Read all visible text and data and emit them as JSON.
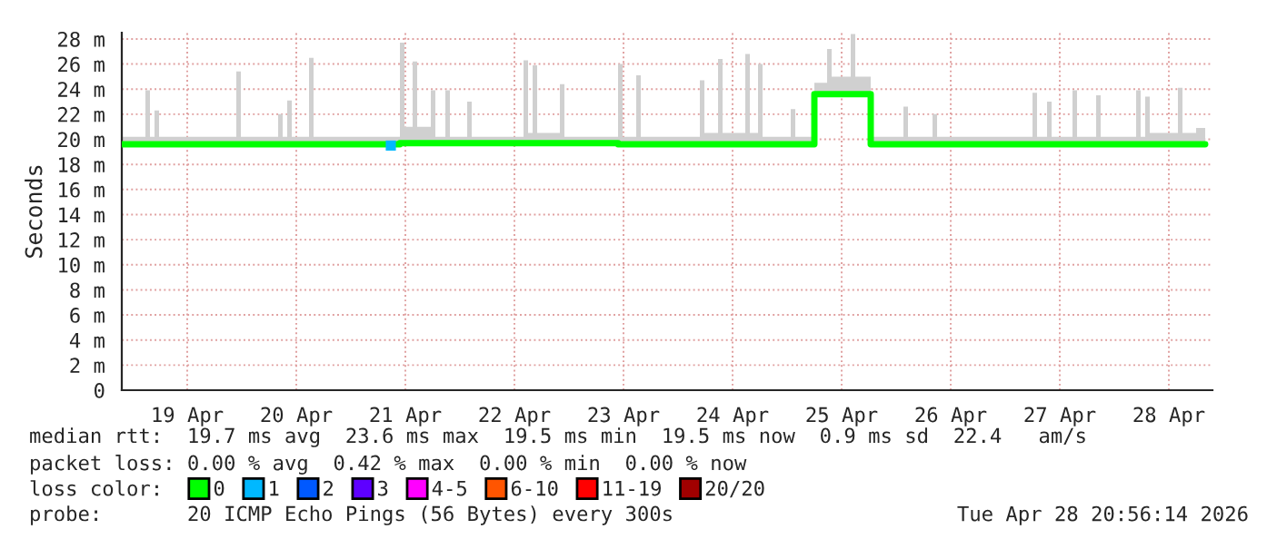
{
  "chart_data": {
    "type": "step",
    "ylabel": "Seconds",
    "x": [
      "2026-04-18T21:36",
      "2026-04-19T02:48",
      "2026-04-19T03:48",
      "2026-04-19T04:48",
      "2026-04-19T05:48",
      "2026-04-19T22:48",
      "2026-04-19T23:48",
      "2026-04-20T08:00",
      "2026-04-20T09:00",
      "2026-04-20T10:00",
      "2026-04-20T11:00",
      "2026-04-20T14:48",
      "2026-04-20T15:48",
      "2026-04-21T10:48",
      "2026-04-21T11:48",
      "2026-04-21T13:36",
      "2026-04-21T14:36",
      "2026-04-21T17:36",
      "2026-04-21T18:36",
      "2026-04-21T20:48",
      "2026-04-21T21:48",
      "2026-04-22T01:36",
      "2026-04-22T02:36",
      "2026-04-22T14:00",
      "2026-04-22T15:00",
      "2026-04-22T16:00",
      "2026-04-22T17:00",
      "2026-04-22T22:00",
      "2026-04-22T23:00",
      "2026-04-23T10:48",
      "2026-04-23T11:48",
      "2026-04-23T14:48",
      "2026-04-23T15:48",
      "2026-04-24T04:48",
      "2026-04-24T05:48",
      "2026-04-24T08:48",
      "2026-04-24T09:48",
      "2026-04-24T14:48",
      "2026-04-24T15:48",
      "2026-04-24T17:36",
      "2026-04-24T18:36",
      "2026-04-25T00:48",
      "2026-04-25T01:48",
      "2026-04-25T06:00",
      "2026-04-25T08:48",
      "2026-04-25T09:48",
      "2026-04-25T14:00",
      "2026-04-25T15:00",
      "2026-04-25T18:24",
      "2026-04-26T01:36",
      "2026-04-26T02:36",
      "2026-04-26T08:00",
      "2026-04-26T09:00",
      "2026-04-27T06:00",
      "2026-04-27T07:00",
      "2026-04-27T09:12",
      "2026-04-27T10:12",
      "2026-04-27T14:48",
      "2026-04-27T15:48",
      "2026-04-27T20:00",
      "2026-04-27T21:00",
      "2026-04-28T04:48",
      "2026-04-28T05:48",
      "2026-04-28T06:48",
      "2026-04-28T07:48",
      "2026-04-28T14:00",
      "2026-04-28T15:00",
      "2026-04-28T18:00",
      "2026-04-28T20:00"
    ],
    "series": [
      {
        "name": "0",
        "color": "#00ff00",
        "values": [
          19.6,
          19.6,
          19.6,
          19.6,
          19.6,
          19.6,
          19.6,
          19.6,
          19.6,
          19.6,
          19.6,
          19.6,
          19.6,
          19.7,
          19.7,
          19.7,
          19.7,
          19.7,
          19.7,
          19.7,
          19.7,
          19.7,
          19.7,
          19.7,
          19.7,
          19.7,
          19.7,
          19.7,
          19.7,
          19.6,
          19.6,
          19.6,
          19.6,
          19.6,
          19.6,
          19.6,
          19.6,
          19.6,
          19.6,
          19.6,
          19.6,
          19.6,
          19.6,
          23.6,
          23.6,
          23.6,
          23.6,
          23.6,
          19.6,
          19.6,
          19.6,
          19.6,
          19.6,
          19.6,
          19.6,
          19.6,
          19.6,
          19.6,
          19.6,
          19.6,
          19.6,
          19.6,
          19.6,
          19.6,
          19.6,
          19.6,
          19.6,
          19.6,
          19.6
        ],
        "lower": [
          19.6,
          19.6,
          19.6,
          19.6,
          19.6,
          19.6,
          19.6,
          19.6,
          19.6,
          19.6,
          19.6,
          19.6,
          19.6,
          19.7,
          19.7,
          19.7,
          19.7,
          19.7,
          19.7,
          19.7,
          19.7,
          19.7,
          19.7,
          19.7,
          19.7,
          19.7,
          19.7,
          19.7,
          19.7,
          19.6,
          19.6,
          19.6,
          19.6,
          19.6,
          19.6,
          19.6,
          19.6,
          19.6,
          19.6,
          19.6,
          19.6,
          19.6,
          19.6,
          23.6,
          23.6,
          23.6,
          23.6,
          23.6,
          19.6,
          19.6,
          19.6,
          19.6,
          19.6,
          19.6,
          19.6,
          19.6,
          19.6,
          19.6,
          19.6,
          19.6,
          19.6,
          19.6,
          19.6,
          19.6,
          19.6,
          19.6,
          19.6,
          19.6,
          19.6
        ],
        "upper": [
          20.2,
          23.9,
          20.2,
          22.3,
          20.2,
          25.4,
          20.2,
          22.0,
          20.2,
          23.1,
          20.2,
          26.5,
          20.2,
          27.7,
          21.0,
          26.2,
          21.0,
          23.9,
          20.2,
          23.9,
          20.2,
          23.0,
          20.2,
          26.3,
          20.5,
          25.9,
          20.5,
          24.4,
          20.2,
          26.0,
          20.2,
          25.1,
          20.2,
          24.7,
          20.5,
          26.4,
          20.5,
          26.8,
          20.5,
          26.0,
          20.2,
          22.4,
          20.2,
          24.5,
          27.2,
          25.0,
          28.4,
          25.0,
          20.2,
          22.6,
          20.2,
          22.0,
          20.2,
          23.7,
          20.2,
          23.0,
          20.2,
          23.9,
          20.2,
          23.5,
          20.2,
          23.9,
          20.2,
          23.4,
          20.5,
          24.1,
          20.5,
          20.9,
          20.9
        ]
      },
      {
        "name": "1",
        "type": "scatter",
        "color": "#00b8ff",
        "marker": "square",
        "x": [
          "2026-04-21T08:48"
        ],
        "values": [
          19.5
        ]
      },
      {
        "name": "2",
        "type": "scatter",
        "color": "#0059ff",
        "marker": "square",
        "values": [
          null,
          null,
          null,
          null,
          null,
          null,
          null,
          null,
          null,
          null,
          null,
          null,
          null,
          null,
          null,
          null,
          null,
          null,
          null,
          null,
          null,
          null,
          null,
          null,
          null,
          null,
          null,
          null,
          null,
          null,
          null,
          null,
          null,
          null,
          null,
          null,
          null,
          null,
          null,
          null,
          null,
          null,
          null,
          null,
          null,
          null,
          null,
          null,
          null,
          null,
          null,
          null,
          null,
          null,
          null,
          null,
          null,
          null,
          null,
          null,
          null,
          null,
          null,
          null,
          null,
          null,
          null,
          null,
          null
        ]
      },
      {
        "name": "3",
        "type": "scatter",
        "color": "#5e00ff",
        "marker": "square",
        "values": [
          null,
          null,
          null,
          null,
          null,
          null,
          null,
          null,
          null,
          null,
          null,
          null,
          null,
          null,
          null,
          null,
          null,
          null,
          null,
          null,
          null,
          null,
          null,
          null,
          null,
          null,
          null,
          null,
          null,
          null,
          null,
          null,
          null,
          null,
          null,
          null,
          null,
          null,
          null,
          null,
          null,
          null,
          null,
          null,
          null,
          null,
          null,
          null,
          null,
          null,
          null,
          null,
          null,
          null,
          null,
          null,
          null,
          null,
          null,
          null,
          null,
          null,
          null,
          null,
          null,
          null,
          null,
          null,
          null
        ]
      },
      {
        "name": "4-5",
        "type": "scatter",
        "color": "#ff00ff",
        "marker": "square",
        "values": [
          null,
          null,
          null,
          null,
          null,
          null,
          null,
          null,
          null,
          null,
          null,
          null,
          null,
          null,
          null,
          null,
          null,
          null,
          null,
          null,
          null,
          null,
          null,
          null,
          null,
          null,
          null,
          null,
          null,
          null,
          null,
          null,
          null,
          null,
          null,
          null,
          null,
          null,
          null,
          null,
          null,
          null,
          null,
          null,
          null,
          null,
          null,
          null,
          null,
          null,
          null,
          null,
          null,
          null,
          null,
          null,
          null,
          null,
          null,
          null,
          null,
          null,
          null,
          null,
          null,
          null,
          null,
          null,
          null
        ]
      },
      {
        "name": "6-10",
        "type": "scatter",
        "color": "#ff5500",
        "marker": "square",
        "values": [
          null,
          null,
          null,
          null,
          null,
          null,
          null,
          null,
          null,
          null,
          null,
          null,
          null,
          null,
          null,
          null,
          null,
          null,
          null,
          null,
          null,
          null,
          null,
          null,
          null,
          null,
          null,
          null,
          null,
          null,
          null,
          null,
          null,
          null,
          null,
          null,
          null,
          null,
          null,
          null,
          null,
          null,
          null,
          null,
          null,
          null,
          null,
          null,
          null,
          null,
          null,
          null,
          null,
          null,
          null,
          null,
          null,
          null,
          null,
          null,
          null,
          null,
          null,
          null,
          null,
          null,
          null,
          null,
          null
        ]
      },
      {
        "name": "11-19",
        "type": "scatter",
        "color": "#ff0000",
        "marker": "square",
        "values": [
          null,
          null,
          null,
          null,
          null,
          null,
          null,
          null,
          null,
          null,
          null,
          null,
          null,
          null,
          null,
          null,
          null,
          null,
          null,
          null,
          null,
          null,
          null,
          null,
          null,
          null,
          null,
          null,
          null,
          null,
          null,
          null,
          null,
          null,
          null,
          null,
          null,
          null,
          null,
          null,
          null,
          null,
          null,
          null,
          null,
          null,
          null,
          null,
          null,
          null,
          null,
          null,
          null,
          null,
          null,
          null,
          null,
          null,
          null,
          null,
          null,
          null,
          null,
          null,
          null,
          null,
          null,
          null,
          null
        ]
      },
      {
        "name": "20/20",
        "type": "scatter",
        "color": "#a10000",
        "marker": "square",
        "values": [
          null,
          null,
          null,
          null,
          null,
          null,
          null,
          null,
          null,
          null,
          null,
          null,
          null,
          null,
          null,
          null,
          null,
          null,
          null,
          null,
          null,
          null,
          null,
          null,
          null,
          null,
          null,
          null,
          null,
          null,
          null,
          null,
          null,
          null,
          null,
          null,
          null,
          null,
          null,
          null,
          null,
          null,
          null,
          null,
          null,
          null,
          null,
          null,
          null,
          null,
          null,
          null,
          null,
          null,
          null,
          null,
          null,
          null,
          null,
          null,
          null,
          null,
          null,
          null,
          null,
          null,
          null,
          null,
          null
        ]
      }
    ],
    "legend": "bottom",
    "legend_title": "loss color:",
    "xlim": [
      "2026-04-18T21:36",
      "2026-04-28T21:36"
    ],
    "xticks": [
      {
        "value": "2026-04-19T12:00",
        "label": "19 Apr"
      },
      {
        "value": "2026-04-20T12:00",
        "label": "20 Apr"
      },
      {
        "value": "2026-04-21T12:00",
        "label": "21 Apr"
      },
      {
        "value": "2026-04-22T12:00",
        "label": "22 Apr"
      },
      {
        "value": "2026-04-23T12:00",
        "label": "23 Apr"
      },
      {
        "value": "2026-04-24T12:00",
        "label": "24 Apr"
      },
      {
        "value": "2026-04-25T12:00",
        "label": "25 Apr"
      },
      {
        "value": "2026-04-26T12:00",
        "label": "26 Apr"
      },
      {
        "value": "2026-04-27T12:00",
        "label": "27 Apr"
      },
      {
        "value": "2026-04-28T12:00",
        "label": "28 Apr"
      }
    ],
    "ylim": [
      0,
      28.5
    ],
    "yticks": [
      0,
      {
        "value": 2,
        "label": "2 m"
      },
      {
        "value": 4,
        "label": "4 m"
      },
      {
        "value": 6,
        "label": "6 m"
      },
      {
        "value": 8,
        "label": "8 m"
      },
      {
        "value": 10,
        "label": "10 m"
      },
      {
        "value": 12,
        "label": "12 m"
      },
      {
        "value": 14,
        "label": "14 m"
      },
      {
        "value": 16,
        "label": "16 m"
      },
      {
        "value": 18,
        "label": "18 m"
      },
      {
        "value": 20,
        "label": "20 m"
      },
      {
        "value": 22,
        "label": "22 m"
      },
      {
        "value": 24,
        "label": "24 m"
      },
      {
        "value": 26,
        "label": "26 m"
      },
      {
        "value": 28,
        "label": "28 m"
      }
    ],
    "grid": true,
    "annotations": [
      "median rtt:  19.7 ms avg  23.6 ms max  19.5 ms min  19.5 ms now  0.9 ms sd  22.4   am/s",
      "packet loss: 0.00 % avg  0.42 % max  0.00 % min  0.00 % now",
      "probe:       20 ICMP Echo Pings (56 Bytes) every 300s",
      "Tue Apr 28 20:56:14 2026"
    ]
  }
}
